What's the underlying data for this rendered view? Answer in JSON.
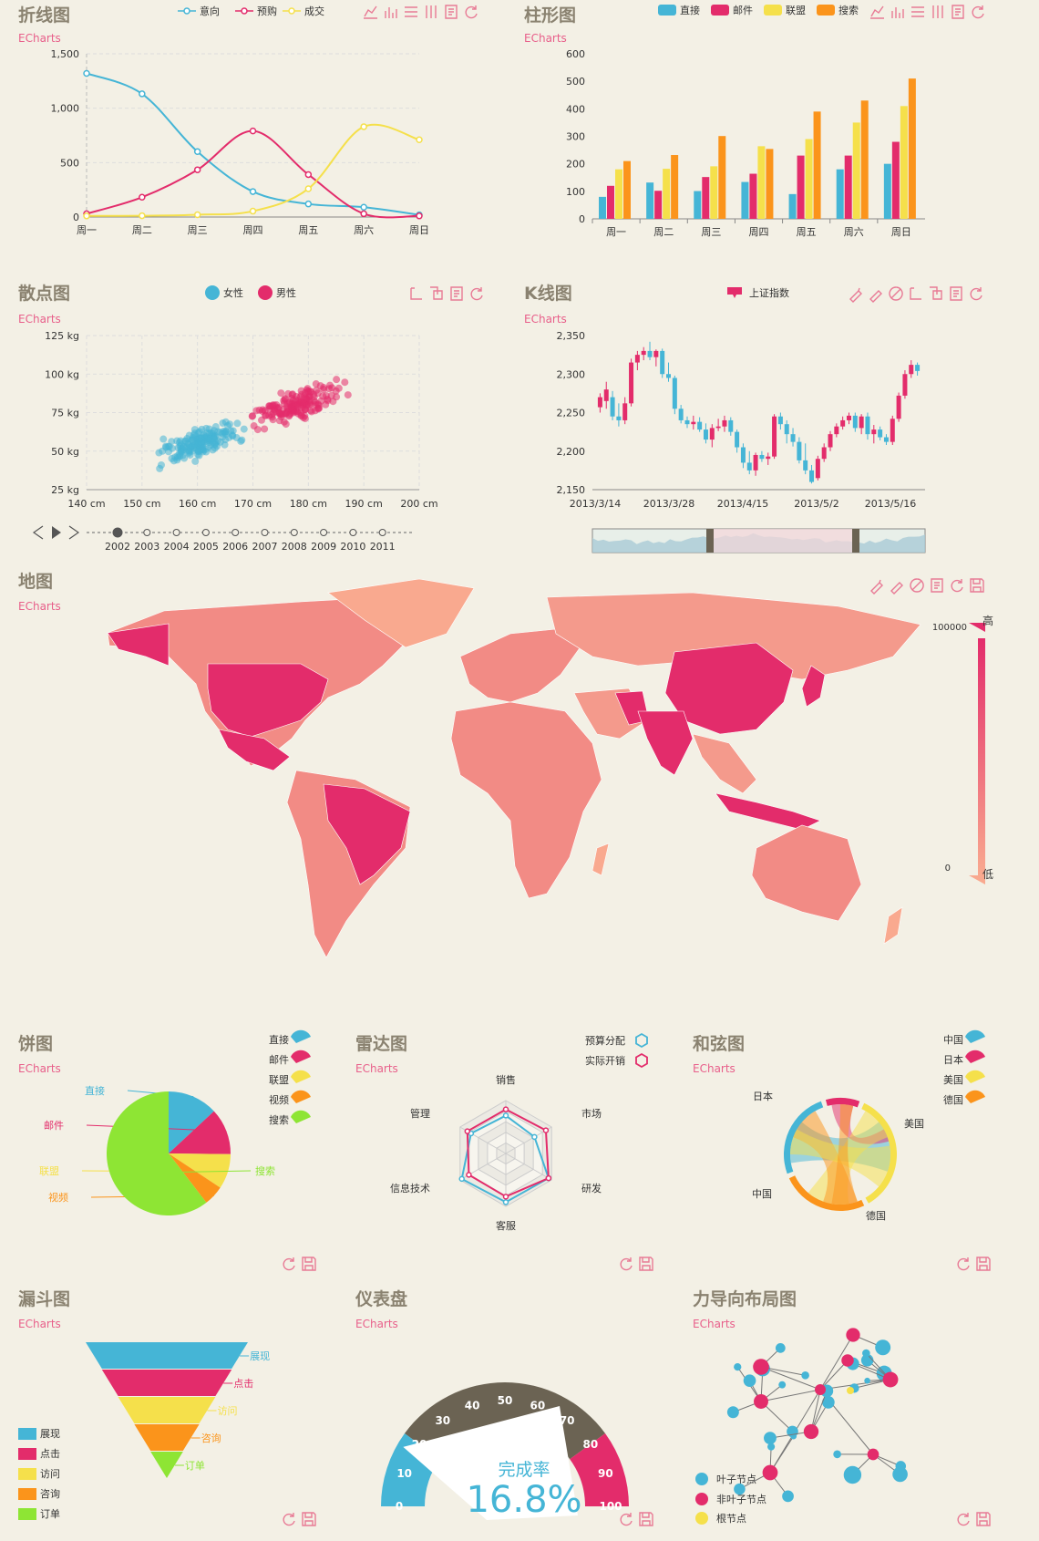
{
  "colors": {
    "blue": "#45b5d6",
    "red": "#e32c6b",
    "yellow": "#f5e04b",
    "orange": "#fb941b",
    "green": "#8ee534",
    "grey": "#6b6353",
    "mapLow": "#f9a98f",
    "mapHigh": "#e32c6b",
    "brand": "#e85f8a"
  },
  "brand": "ECharts",
  "line": {
    "title": "折线图",
    "legend": [
      "意向",
      "预购",
      "成交"
    ],
    "chart_data": {
      "type": "line",
      "categories": [
        "周一",
        "周二",
        "周三",
        "周四",
        "周五",
        "周六",
        "周日"
      ],
      "ylim": [
        0,
        1500
      ],
      "yticks": [
        "0",
        "500",
        "1,000",
        "1,500"
      ],
      "series": [
        {
          "name": "意向",
          "values": [
            1320,
            1132,
            601,
            234,
            120,
            90,
            20
          ]
        },
        {
          "name": "预购",
          "values": [
            30,
            182,
            434,
            791,
            390,
            30,
            10
          ]
        },
        {
          "name": "成交",
          "values": [
            10,
            12,
            21,
            54,
            260,
            830,
            710
          ]
        }
      ]
    }
  },
  "bar": {
    "title": "柱形图",
    "legend": [
      "直接",
      "邮件",
      "联盟",
      "搜索"
    ],
    "chart_data": {
      "type": "bar",
      "categories": [
        "周一",
        "周二",
        "周三",
        "周四",
        "周五",
        "周六",
        "周日"
      ],
      "ylim": [
        0,
        600
      ],
      "yticks": [
        "0",
        "100",
        "200",
        "300",
        "400",
        "500",
        "600"
      ],
      "series": [
        {
          "name": "直接",
          "values": [
            80,
            132,
            101,
            134,
            90,
            180,
            200
          ]
        },
        {
          "name": "邮件",
          "values": [
            120,
            102,
            152,
            164,
            230,
            230,
            280
          ]
        },
        {
          "name": "联盟",
          "values": [
            180,
            182,
            191,
            264,
            290,
            350,
            410
          ]
        },
        {
          "name": "搜索",
          "values": [
            210,
            232,
            301,
            254,
            390,
            430,
            510
          ]
        }
      ]
    }
  },
  "scatter": {
    "title": "散点图",
    "legend": [
      "女性",
      "男性"
    ],
    "chart_data": {
      "type": "scatter",
      "xlim": [
        140,
        200
      ],
      "ylim": [
        25,
        125
      ],
      "xticks": [
        "140 cm",
        "150 cm",
        "160 cm",
        "170 cm",
        "180 cm",
        "190 cm",
        "200 cm"
      ],
      "yticks": [
        "25 kg",
        "50 kg",
        "75 kg",
        "100 kg",
        "125 kg"
      ],
      "series": [
        {
          "name": "女性",
          "center": [
            161,
            56
          ],
          "spread": [
            6,
            8
          ],
          "count": 170
        },
        {
          "name": "男性",
          "center": [
            178,
            80
          ],
          "spread": [
            7,
            10
          ],
          "count": 170
        }
      ]
    },
    "timeline": [
      "2002",
      "2003",
      "2004",
      "2005",
      "2006",
      "2007",
      "2008",
      "2009",
      "2010",
      "2011"
    ]
  },
  "kline": {
    "title": "K线图",
    "legend": [
      "上证指数"
    ],
    "chart_data": {
      "type": "candlestick",
      "ylim": [
        2150,
        2350
      ],
      "yticks": [
        "2,150",
        "2,200",
        "2,250",
        "2,300",
        "2,350"
      ],
      "xticks": [
        "2013/3/14",
        "2013/3/28",
        "2013/4/15",
        "2013/5/2",
        "2013/5/16"
      ],
      "values": [
        [
          2257,
          2270,
          2250,
          2275
        ],
        [
          2265,
          2280,
          2255,
          2290
        ],
        [
          2270,
          2245,
          2240,
          2278
        ],
        [
          2245,
          2240,
          2232,
          2262
        ],
        [
          2240,
          2262,
          2235,
          2270
        ],
        [
          2262,
          2315,
          2258,
          2320
        ],
        [
          2315,
          2325,
          2305,
          2330
        ],
        [
          2325,
          2330,
          2318,
          2335
        ],
        [
          2330,
          2322,
          2318,
          2342
        ],
        [
          2322,
          2330,
          2310,
          2332
        ],
        [
          2330,
          2300,
          2295,
          2333
        ],
        [
          2300,
          2295,
          2290,
          2315
        ],
        [
          2295,
          2255,
          2248,
          2298
        ],
        [
          2255,
          2240,
          2236,
          2260
        ],
        [
          2240,
          2235,
          2230,
          2245
        ],
        [
          2235,
          2238,
          2228,
          2246
        ],
        [
          2238,
          2228,
          2225,
          2244
        ],
        [
          2228,
          2215,
          2210,
          2236
        ],
        [
          2215,
          2230,
          2205,
          2235
        ],
        [
          2230,
          2232,
          2226,
          2242
        ],
        [
          2232,
          2240,
          2225,
          2246
        ],
        [
          2240,
          2225,
          2220,
          2244
        ],
        [
          2225,
          2205,
          2198,
          2228
        ],
        [
          2205,
          2185,
          2178,
          2210
        ],
        [
          2185,
          2175,
          2170,
          2200
        ],
        [
          2175,
          2195,
          2168,
          2198
        ],
        [
          2195,
          2190,
          2186,
          2200
        ],
        [
          2190,
          2193,
          2182,
          2198
        ],
        [
          2193,
          2245,
          2190,
          2248
        ],
        [
          2245,
          2235,
          2228,
          2250
        ],
        [
          2235,
          2222,
          2210,
          2240
        ],
        [
          2222,
          2212,
          2206,
          2230
        ],
        [
          2212,
          2188,
          2184,
          2218
        ],
        [
          2188,
          2175,
          2170,
          2210
        ],
        [
          2175,
          2160,
          2158,
          2182
        ],
        [
          2165,
          2190,
          2162,
          2194
        ],
        [
          2190,
          2205,
          2186,
          2210
        ],
        [
          2205,
          2222,
          2200,
          2226
        ],
        [
          2222,
          2232,
          2218,
          2236
        ],
        [
          2232,
          2240,
          2228,
          2245
        ],
        [
          2240,
          2246,
          2235,
          2250
        ],
        [
          2246,
          2230,
          2225,
          2250
        ],
        [
          2230,
          2245,
          2222,
          2248
        ],
        [
          2245,
          2222,
          2215,
          2250
        ],
        [
          2222,
          2228,
          2210,
          2234
        ],
        [
          2228,
          2218,
          2214,
          2232
        ],
        [
          2218,
          2212,
          2208,
          2222
        ],
        [
          2212,
          2242,
          2208,
          2246
        ],
        [
          2242,
          2272,
          2238,
          2276
        ],
        [
          2272,
          2300,
          2268,
          2305
        ],
        [
          2300,
          2312,
          2295,
          2318
        ],
        [
          2312,
          2304,
          2298,
          2315
        ]
      ]
    }
  },
  "map": {
    "title": "地图",
    "visualMap": {
      "max": "100000",
      "min": "0",
      "high": "高",
      "low": "低"
    }
  },
  "pie": {
    "title": "饼图",
    "legend": [
      "直接",
      "邮件",
      "联盟",
      "视频",
      "搜索"
    ],
    "chart_data": {
      "type": "pie",
      "labels": [
        "直接",
        "邮件",
        "联盟",
        "视频",
        "搜索"
      ],
      "values": [
        335,
        310,
        234,
        135,
        1548
      ]
    }
  },
  "radar": {
    "title": "雷达图",
    "legend": [
      "预算分配",
      "实际开销"
    ],
    "chart_data": {
      "type": "radar",
      "indicators": [
        "销售",
        "市场",
        "研发",
        "客服",
        "信息技术",
        "管理"
      ],
      "max": [
        6000,
        16000,
        30000,
        38000,
        52000,
        25000
      ],
      "series": [
        {
          "name": "预算分配",
          "values": [
            4300,
            10000,
            28000,
            35000,
            50000,
            19000
          ]
        },
        {
          "name": "实际开销",
          "values": [
            5000,
            14000,
            28000,
            31000,
            42000,
            21000
          ]
        }
      ]
    }
  },
  "chord": {
    "title": "和弦图",
    "legend": [
      "中国",
      "日本",
      "美国",
      "德国"
    ],
    "labels": [
      "日本",
      "美国",
      "中国",
      "德国"
    ]
  },
  "funnel": {
    "title": "漏斗图",
    "legend": [
      "展现",
      "点击",
      "访问",
      "咨询",
      "订单"
    ],
    "chart_data": {
      "type": "funnel",
      "labels": [
        "展现",
        "点击",
        "访问",
        "咨询",
        "订单"
      ],
      "values": [
        100,
        80,
        60,
        40,
        20
      ]
    }
  },
  "gauge": {
    "title": "仪表盘",
    "label": "完成率",
    "value": "16.8%",
    "ticks": [
      "0",
      "10",
      "20",
      "30",
      "40",
      "50",
      "60",
      "70",
      "80",
      "90",
      "100"
    ]
  },
  "force": {
    "title": "力导向布局图",
    "legend": [
      "叶子节点",
      "非叶子节点",
      "根节点"
    ]
  }
}
